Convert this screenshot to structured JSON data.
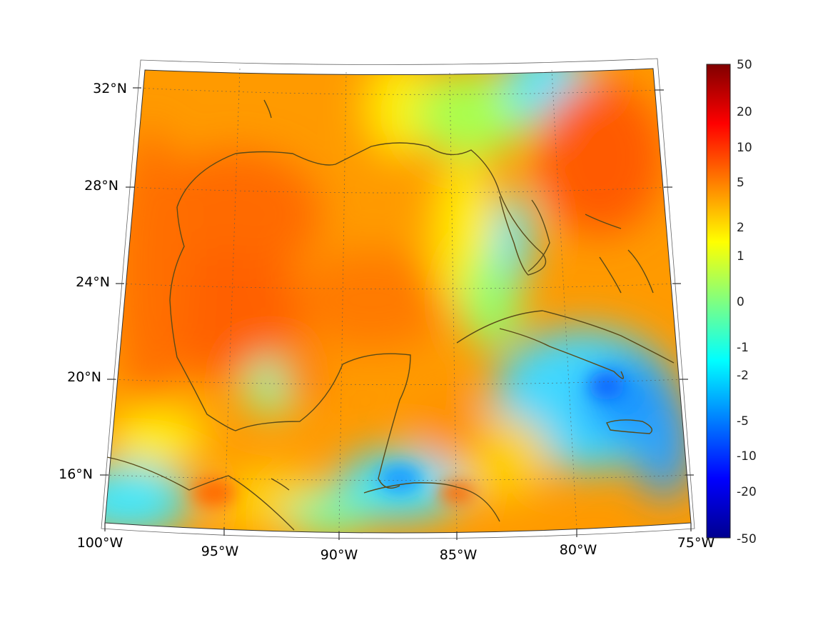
{
  "chart_data": {
    "type": "heatmap",
    "projection": "lambert-conformal",
    "colormap": "jet",
    "lon_range": [
      -100,
      -75
    ],
    "lat_range": [
      14,
      33
    ],
    "longitude_labels": [
      "100°W",
      "95°W",
      "90°W",
      "85°W",
      "80°W",
      "75°W"
    ],
    "latitude_labels": [
      "16°N",
      "20°N",
      "24°N",
      "28°N",
      "32°N"
    ],
    "colorbar": {
      "ticks": [
        "50",
        "20",
        "10",
        "5",
        "2",
        "1",
        "0",
        "-1",
        "-2",
        "-5",
        "-10",
        "-20",
        "-50"
      ],
      "range": [
        -50,
        50
      ]
    },
    "grid": true,
    "coastlines": true
  }
}
